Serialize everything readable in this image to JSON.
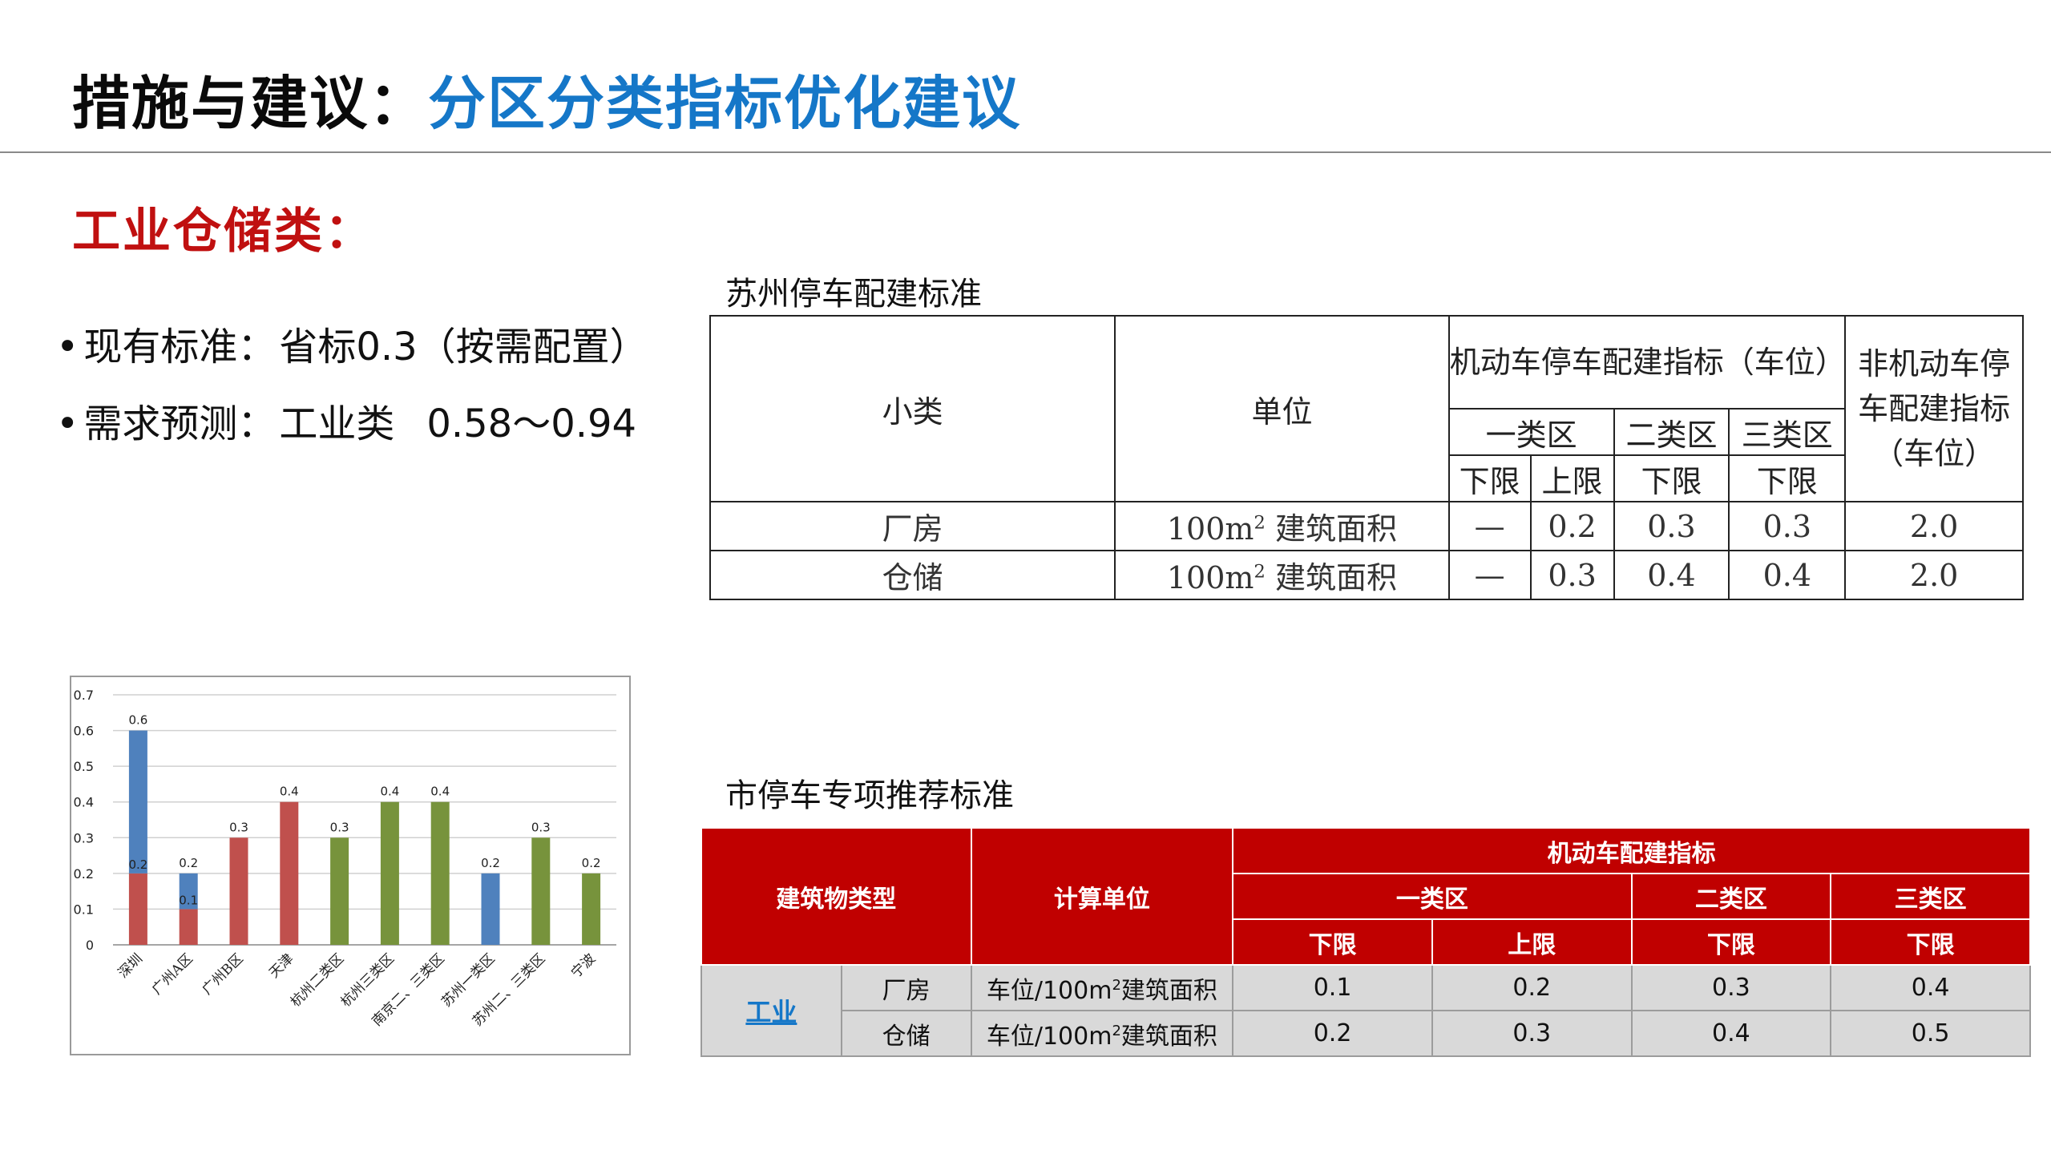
{
  "header": {
    "title_prefix": "措施与建议：",
    "title_main": "分区分类指标优化建议"
  },
  "section": {
    "heading": "工业仓储类："
  },
  "bullets": [
    {
      "dot": "•",
      "label": "现有标准：",
      "value": "省标0.3（按需配置）"
    },
    {
      "dot": "•",
      "label": "需求预测：",
      "value": "工业类",
      "value2": "0.58～0.94"
    }
  ],
  "suzhou_table": {
    "caption": "苏州停车配建标准",
    "headers": {
      "subclass": "小类",
      "unit": "单位",
      "motor": "机动车停车配建指标（车位）",
      "nonmotor": "非机动车停车配建指标（车位）",
      "zone1": "一类区",
      "zone2": "二类区",
      "zone3": "三类区",
      "lower": "下限",
      "upper": "上限"
    },
    "rows": [
      {
        "name": "厂房",
        "unit_num": "100m",
        "unit_sup": "2",
        "unit_text": "建筑面积",
        "z1_lower": "—",
        "z1_upper": "0.2",
        "z2_lower": "0.3",
        "z3_lower": "0.3",
        "nonmotor": "2.0"
      },
      {
        "name": "仓储",
        "unit_num": "100m",
        "unit_sup": "2",
        "unit_text": "建筑面积",
        "z1_lower": "—",
        "z1_upper": "0.3",
        "z2_lower": "0.4",
        "z3_lower": "0.4",
        "nonmotor": "2.0"
      }
    ]
  },
  "city_table": {
    "caption": "市停车专项推荐标准",
    "headers": {
      "building_type": "建筑物类型",
      "calc_unit": "计算单位",
      "motor": "机动车配建指标",
      "zone1": "一类区",
      "zone2": "二类区",
      "zone3": "三类区",
      "lower": "下限",
      "upper": "上限"
    },
    "category": "工业",
    "rows": [
      {
        "name": "厂房",
        "unit_prefix": "车位/100m",
        "unit_sup": "2",
        "unit_suffix": "建筑面积",
        "values": [
          "0.1",
          "0.2",
          "0.3",
          "0.4"
        ]
      },
      {
        "name": "仓储",
        "unit_prefix": "车位/100m",
        "unit_sup": "2",
        "unit_suffix": "建筑面积",
        "values": [
          "0.2",
          "0.3",
          "0.4",
          "0.5"
        ]
      }
    ]
  },
  "colors": {
    "title_blue": "#1577c8",
    "heading_red": "#c01010",
    "header_red": "#c00000",
    "bar_blue": "#4f81bd",
    "bar_red": "#c0504d",
    "bar_green": "#77933c"
  },
  "chart_data": {
    "type": "bar",
    "title": "",
    "xlabel": "",
    "ylabel": "",
    "ylim": [
      0,
      0.7
    ],
    "yticks": [
      "0",
      "0.1",
      "0.2",
      "0.3",
      "0.4",
      "0.5",
      "0.6",
      "0.7"
    ],
    "grid": true,
    "legend": "none",
    "categories": [
      "深圳",
      "广州A区",
      "广州B区",
      "天津",
      "杭州二类区",
      "杭州三类区",
      "南京二、三类区",
      "苏州一类区",
      "苏州二、三类区",
      "宁波"
    ],
    "bars": [
      {
        "category": "深圳",
        "lower": 0.2,
        "upper": 0.6,
        "lower_color": "red",
        "upper_color": "blue",
        "labels": [
          "0.2",
          "0.6"
        ]
      },
      {
        "category": "广州A区",
        "lower": 0.1,
        "upper": 0.2,
        "lower_color": "red",
        "upper_color": "blue",
        "labels": [
          "0.1",
          "0.2"
        ]
      },
      {
        "category": "广州B区",
        "value": 0.3,
        "color": "red",
        "labels": [
          "0.3"
        ]
      },
      {
        "category": "天津",
        "value": 0.4,
        "color": "red",
        "labels": [
          "0.4"
        ]
      },
      {
        "category": "杭州二类区",
        "value": 0.3,
        "color": "green",
        "labels": [
          "0.3"
        ]
      },
      {
        "category": "杭州三类区",
        "value": 0.4,
        "color": "green",
        "labels": [
          "0.4"
        ]
      },
      {
        "category": "南京二、三类区",
        "value": 0.4,
        "color": "green",
        "labels": [
          "0.4"
        ]
      },
      {
        "category": "苏州一类区",
        "value": 0.2,
        "color": "blue",
        "labels": [
          "0.2"
        ]
      },
      {
        "category": "苏州二、三类区",
        "value": 0.3,
        "color": "green",
        "labels": [
          "0.3"
        ]
      },
      {
        "category": "宁波",
        "value": 0.2,
        "color": "green",
        "labels": [
          "0.2"
        ]
      }
    ]
  }
}
